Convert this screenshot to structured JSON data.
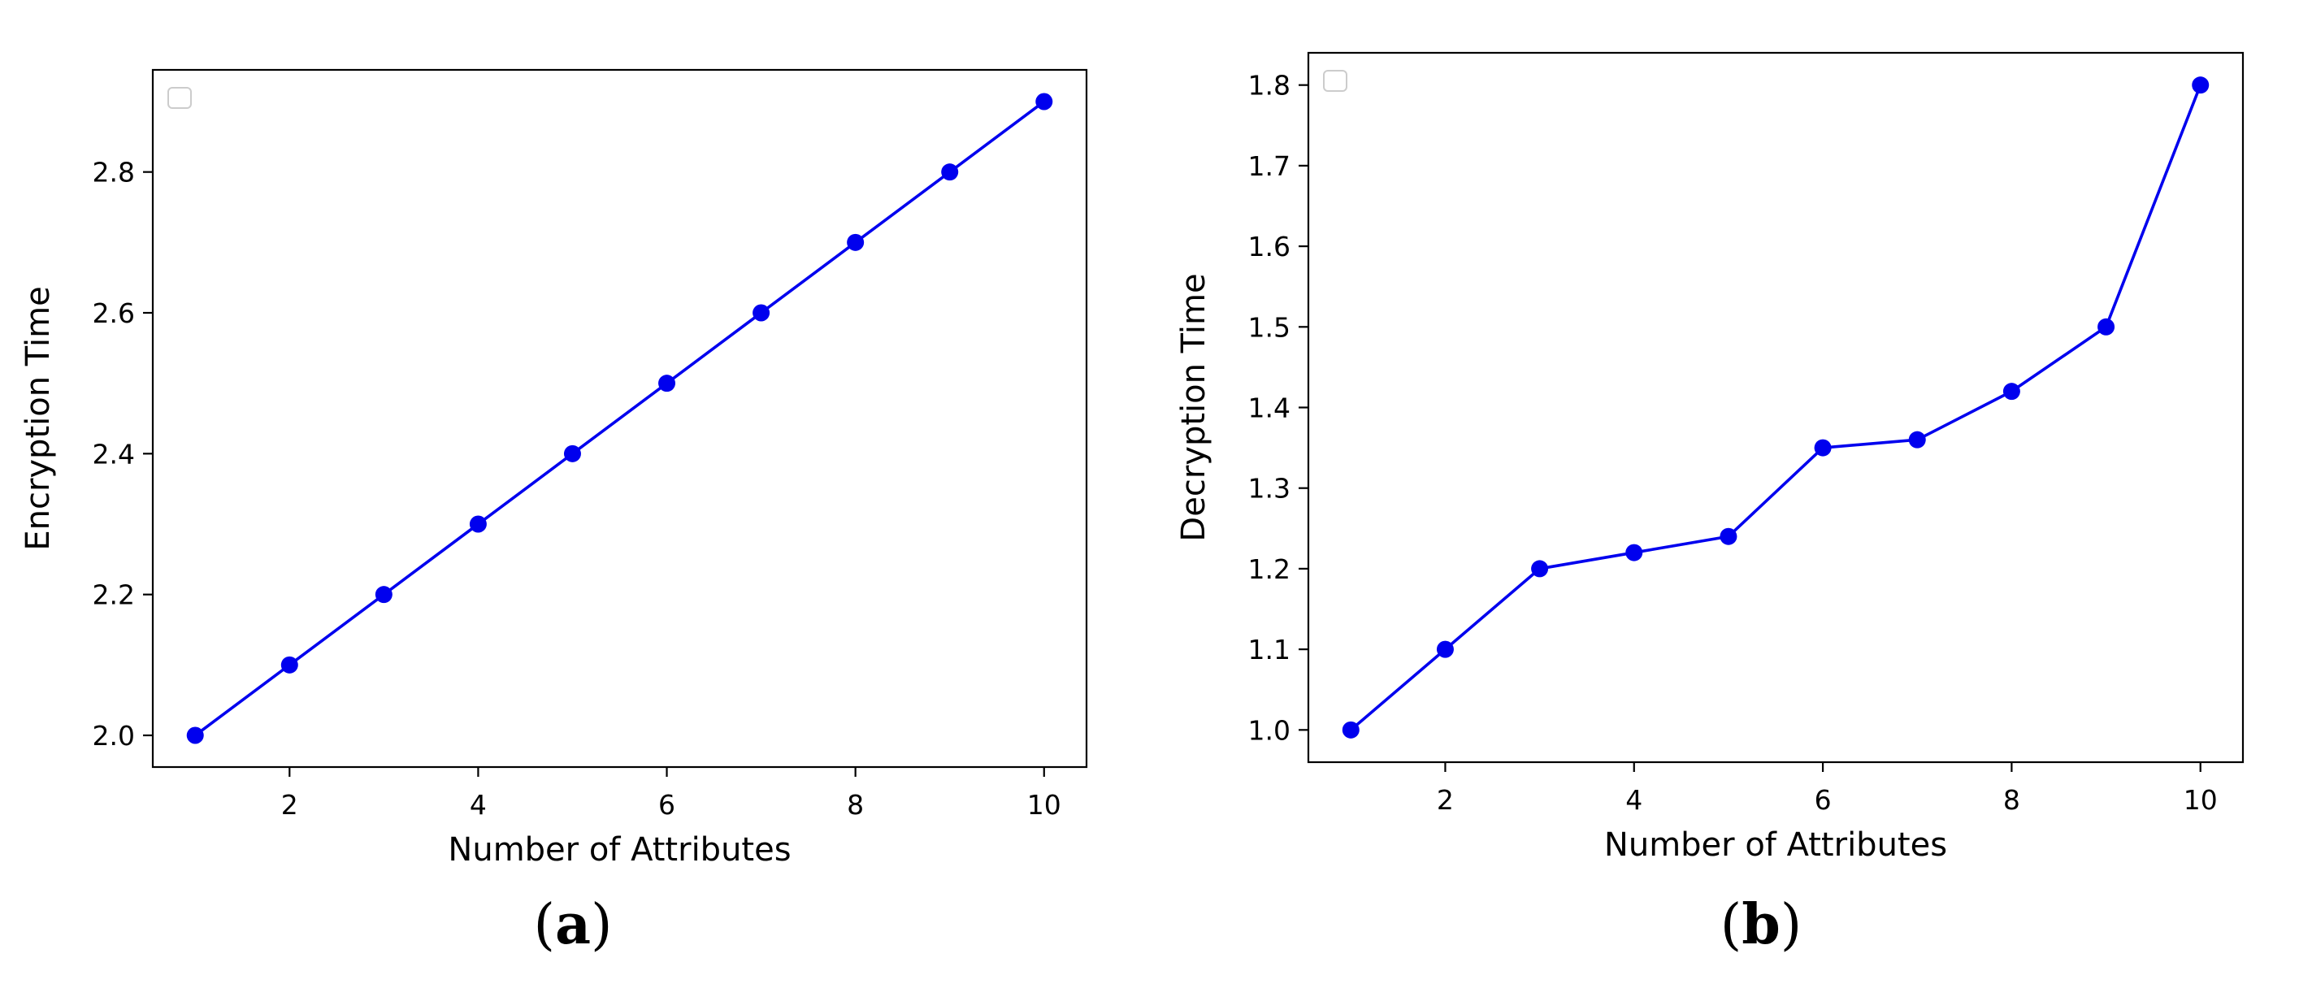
{
  "chart_data": [
    {
      "type": "line",
      "panel_label": "a",
      "xlabel": "Number of Attributes",
      "ylabel": "Encryption Time",
      "xlim": [
        0.55,
        10.45
      ],
      "ylim": [
        1.955,
        2.945
      ],
      "xticks": [
        2,
        4,
        6,
        8,
        10
      ],
      "yticks": [
        2.0,
        2.2,
        2.4,
        2.6,
        2.8
      ],
      "ytick_format": 1,
      "grid": false,
      "legend": "top-left (empty)",
      "series": [
        {
          "color": "#0000ee",
          "marker": "circle",
          "x": [
            1,
            2,
            3,
            4,
            5,
            6,
            7,
            8,
            9,
            10
          ],
          "y": [
            2.0,
            2.1,
            2.2,
            2.3,
            2.4,
            2.5,
            2.6,
            2.7,
            2.8,
            2.9
          ]
        }
      ]
    },
    {
      "type": "line",
      "panel_label": "b",
      "xlabel": "Number of Attributes",
      "ylabel": "Decryption Time",
      "xlim": [
        0.55,
        10.45
      ],
      "ylim": [
        0.96,
        1.84
      ],
      "xticks": [
        2,
        4,
        6,
        8,
        10
      ],
      "yticks": [
        1.0,
        1.1,
        1.2,
        1.3,
        1.4,
        1.5,
        1.6,
        1.7,
        1.8
      ],
      "ytick_format": 1,
      "grid": false,
      "legend": "top-left (empty)",
      "series": [
        {
          "color": "#0000ee",
          "marker": "circle",
          "x": [
            1,
            2,
            3,
            4,
            5,
            6,
            7,
            8,
            9,
            10
          ],
          "y": [
            1.0,
            1.1,
            1.2,
            1.22,
            1.24,
            1.35,
            1.36,
            1.42,
            1.5,
            1.8
          ]
        }
      ]
    }
  ]
}
